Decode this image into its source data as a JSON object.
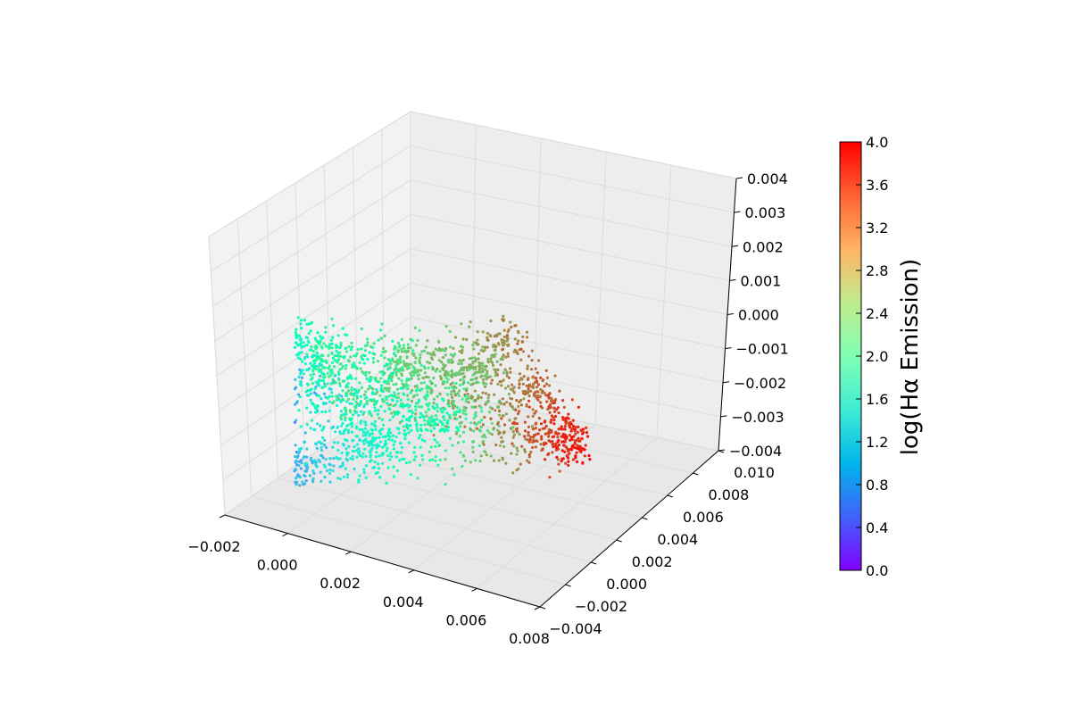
{
  "chart_data": {
    "type": "scatter",
    "projection": "3d",
    "title": "",
    "x_axis": {
      "range": [
        -0.002,
        0.008
      ],
      "ticks": [
        -0.002,
        0.0,
        0.002,
        0.004,
        0.006,
        0.008
      ],
      "tick_labels": [
        "−0.002",
        "0.000",
        "0.002",
        "0.004",
        "0.006",
        "0.008"
      ]
    },
    "y_axis": {
      "range": [
        -0.004,
        0.01
      ],
      "ticks": [
        -0.004,
        -0.002,
        0.0,
        0.002,
        0.004,
        0.006,
        0.008,
        0.01
      ],
      "tick_labels": [
        "−0.004",
        "−0.002",
        "0.000",
        "0.002",
        "0.004",
        "0.006",
        "0.008",
        "0.010"
      ]
    },
    "z_axis": {
      "range": [
        -0.004,
        0.004
      ],
      "ticks": [
        -0.004,
        -0.003,
        -0.002,
        -0.001,
        0.0,
        0.001,
        0.002,
        0.003,
        0.004
      ],
      "tick_labels": [
        "−0.004",
        "−0.003",
        "−0.002",
        "−0.001",
        "0.000",
        "0.001",
        "0.002",
        "0.003",
        "0.004"
      ]
    },
    "colorbar": {
      "label": "log(Hα Emission)",
      "range": [
        0.0,
        4.0
      ],
      "ticks": [
        0.0,
        0.4,
        0.8,
        1.2,
        1.6,
        2.0,
        2.4,
        2.8,
        3.2,
        3.6,
        4.0
      ],
      "tick_labels": [
        "0.0",
        "0.4",
        "0.8",
        "1.2",
        "1.6",
        "2.0",
        "2.4",
        "2.8",
        "3.2",
        "3.6",
        "4.0"
      ],
      "colormap": "rainbow"
    },
    "grid": true,
    "pane_color": "#f2f2f2",
    "series": [
      {
        "points_approx": [
          {
            "x": -0.001,
            "y": -0.003,
            "z": 0.001,
            "c": 1.2
          },
          {
            "x": -0.0008,
            "y": -0.0028,
            "z": -0.0005,
            "c": 0.6
          },
          {
            "x": -0.0006,
            "y": -0.003,
            "z": -0.0025,
            "c": 0.8
          },
          {
            "x": -0.0004,
            "y": -0.0025,
            "z": -0.003,
            "c": 1.0
          },
          {
            "x": -0.0006,
            "y": -0.002,
            "z": 0.0012,
            "c": 1.9
          },
          {
            "x": 0.0005,
            "y": -0.0015,
            "z": 0.0005,
            "c": 2.4
          },
          {
            "x": 0.001,
            "y": -0.001,
            "z": -0.0008,
            "c": 2.6
          },
          {
            "x": 0.0015,
            "y": -0.001,
            "z": -0.002,
            "c": 1.6
          },
          {
            "x": 0.0025,
            "y": 0.0,
            "z": 0.0005,
            "c": 2.8
          },
          {
            "x": 0.003,
            "y": 0.001,
            "z": -0.0015,
            "c": 2.0
          },
          {
            "x": 0.004,
            "y": 0.002,
            "z": 0.0,
            "c": 3.0
          },
          {
            "x": 0.0045,
            "y": 0.003,
            "z": 0.0008,
            "c": 3.3
          },
          {
            "x": 0.005,
            "y": 0.004,
            "z": -0.001,
            "c": 3.5
          },
          {
            "x": 0.0055,
            "y": 0.005,
            "z": -0.0025,
            "c": 3.9
          },
          {
            "x": 0.005,
            "y": 0.006,
            "z": -0.0035,
            "c": 3.9
          }
        ]
      }
    ]
  }
}
